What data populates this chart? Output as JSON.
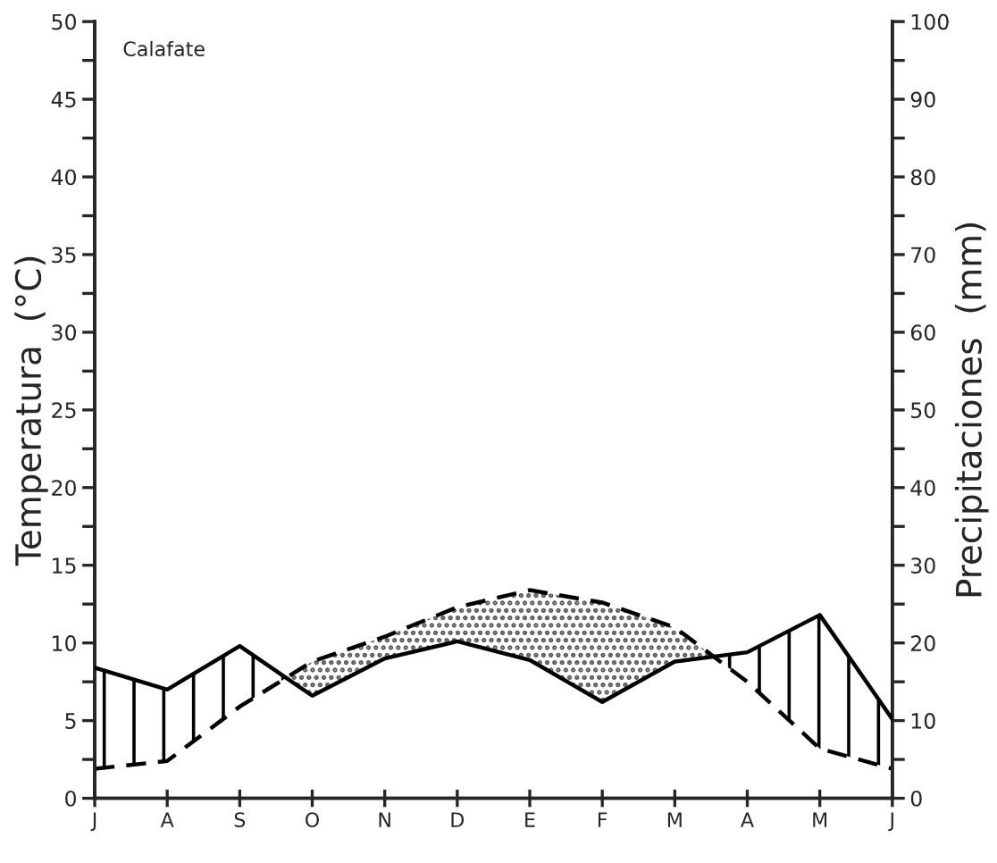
{
  "chart_data": {
    "type": "line",
    "title": "Calafate",
    "ylabel": "Temperatura  (°C)",
    "y2label": "Precipitaciones  (mm)",
    "categories": [
      "J",
      "A",
      "S",
      "O",
      "N",
      "D",
      "E",
      "F",
      "M",
      "A",
      "M",
      "J"
    ],
    "series": [
      {
        "axis": "y",
        "color": "#000000",
        "line_style": "dashed",
        "values": [
          1.9,
          2.4,
          5.9,
          8.8,
          10.4,
          12.3,
          13.4,
          12.6,
          11.0,
          7.5,
          3.2,
          1.9
        ]
      },
      {
        "axis": "y2",
        "color": "#000000",
        "line_style": "solid",
        "values": [
          16.8,
          14.0,
          19.6,
          13.2,
          18.0,
          20.2,
          17.8,
          12.4,
          17.6,
          18.8,
          23.6,
          10.2
        ]
      }
    ],
    "ylim": [
      0,
      50
    ],
    "yticks": [
      0,
      {
        "value": 2.5,
        "label": null
      },
      5,
      {
        "value": 7.5,
        "label": null
      },
      10,
      {
        "value": 12.5,
        "label": null
      },
      15,
      {
        "value": 17.5,
        "label": null
      },
      20,
      {
        "value": 22.5,
        "label": null
      },
      25,
      {
        "value": 27.5,
        "label": null
      },
      30,
      {
        "value": 32.5,
        "label": null
      },
      35,
      {
        "value": 37.5,
        "label": null
      },
      40,
      {
        "value": 42.5,
        "label": null
      },
      45,
      {
        "value": 47.5,
        "label": null
      },
      50
    ],
    "y2lim": [
      0,
      100
    ],
    "y2ticks": [
      0,
      {
        "value": 5,
        "label": null
      },
      10,
      {
        "value": 15,
        "label": null
      },
      20,
      {
        "value": 25,
        "label": null
      },
      30,
      {
        "value": 35,
        "label": null
      },
      40,
      {
        "value": 45,
        "label": null
      },
      50,
      {
        "value": 55,
        "label": null
      },
      60,
      {
        "value": 65,
        "label": null
      },
      70,
      {
        "value": 75,
        "label": null
      },
      80,
      {
        "value": 85,
        "label": null
      },
      90,
      {
        "value": 95,
        "label": null
      },
      100
    ],
    "grid": false,
    "legend": false
  }
}
